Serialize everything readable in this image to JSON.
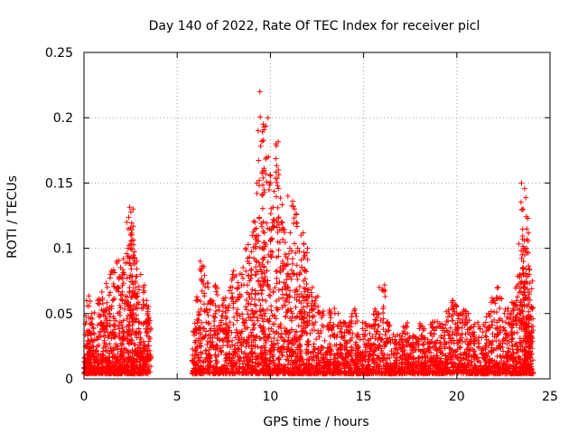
{
  "chart_data": {
    "type": "scatter",
    "title": "Day 140 of 2022, Rate Of TEC Index for receiver picl",
    "xlabel": "GPS time / hours",
    "ylabel": "ROTI / TECUs",
    "xlim": [
      0,
      25
    ],
    "ylim": [
      0,
      0.25
    ],
    "x_ticks": [
      0,
      5,
      10,
      15,
      20,
      25
    ],
    "y_ticks": [
      0,
      0.05,
      0.1,
      0.15,
      0.2,
      0.25
    ],
    "x_tick_labels": [
      "0",
      "5",
      "10",
      "15",
      "20",
      "25"
    ],
    "y_tick_labels": [
      "0",
      "0.05",
      "0.1",
      "0.15",
      "0.2",
      "0.25"
    ],
    "grid": true,
    "marker": "+",
    "series_color": "#ff0000",
    "data_gap_hours": [
      3.6,
      5.8
    ],
    "series": [
      {
        "x": [
          0.1,
          0.2,
          0.4,
          0.6,
          0.9,
          1.1,
          1.3,
          1.5,
          1.7,
          1.9,
          2.0,
          2.2,
          2.4,
          2.5,
          2.6,
          2.7,
          2.9,
          3.1,
          3.3,
          3.5,
          5.9,
          6.1,
          6.3,
          6.6,
          6.9,
          7.2,
          7.5,
          7.8,
          8.1,
          8.4,
          8.7,
          8.9,
          9.1,
          9.3,
          9.5,
          9.6,
          9.7,
          9.9,
          10.1,
          10.3,
          10.5,
          10.7,
          10.9,
          11.1,
          11.3,
          11.5,
          11.7,
          11.9,
          12.1,
          12.4,
          12.7,
          13.0,
          13.3,
          13.6,
          13.9,
          14.2,
          14.5,
          14.8,
          15.1,
          15.4,
          15.7,
          16.0,
          16.3,
          16.6,
          16.9,
          17.2,
          17.5,
          17.8,
          18.1,
          18.4,
          18.7,
          19.0,
          19.3,
          19.6,
          19.9,
          20.2,
          20.5,
          20.8,
          21.1,
          21.4,
          21.7,
          22.0,
          22.3,
          22.6,
          22.9,
          23.1,
          23.3,
          23.5,
          23.6,
          23.7,
          23.8,
          23.9,
          24.0
        ],
        "y": [
          0.04,
          0.06,
          0.05,
          0.03,
          0.06,
          0.07,
          0.05,
          0.08,
          0.07,
          0.09,
          0.08,
          0.1,
          0.12,
          0.13,
          0.11,
          0.09,
          0.08,
          0.07,
          0.06,
          0.05,
          0.05,
          0.06,
          0.09,
          0.07,
          0.06,
          0.07,
          0.06,
          0.07,
          0.08,
          0.08,
          0.1,
          0.09,
          0.12,
          0.15,
          0.19,
          0.22,
          0.2,
          0.17,
          0.15,
          0.18,
          0.16,
          0.12,
          0.1,
          0.14,
          0.13,
          0.1,
          0.11,
          0.1,
          0.07,
          0.06,
          0.05,
          0.04,
          0.05,
          0.05,
          0.04,
          0.04,
          0.05,
          0.03,
          0.04,
          0.04,
          0.05,
          0.07,
          0.04,
          0.03,
          0.03,
          0.04,
          0.03,
          0.03,
          0.04,
          0.03,
          0.04,
          0.04,
          0.04,
          0.05,
          0.06,
          0.05,
          0.05,
          0.04,
          0.04,
          0.04,
          0.05,
          0.06,
          0.07,
          0.05,
          0.05,
          0.06,
          0.08,
          0.1,
          0.15,
          0.13,
          0.1,
          0.08,
          0.06
        ]
      }
    ]
  }
}
